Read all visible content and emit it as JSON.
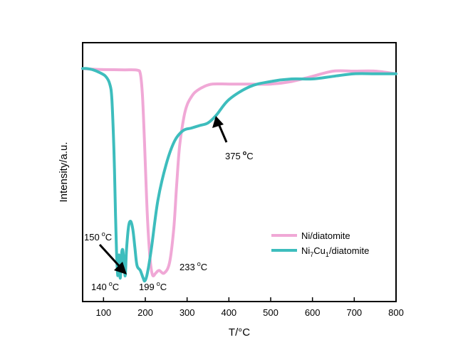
{
  "chart_data": {
    "type": "line",
    "title": "",
    "xlabel": "T/°C",
    "ylabel": "Intensity/a.u.",
    "xlim": [
      50,
      800
    ],
    "ylim": [
      0,
      100
    ],
    "x_ticks": [
      100,
      200,
      300,
      400,
      500,
      600,
      700,
      800
    ],
    "x_tick_labels": [
      "100",
      "200",
      "300",
      "400",
      "500",
      "600",
      "700",
      "800"
    ],
    "y_ticks_shown": false,
    "legend_position": "middle-right",
    "series": [
      {
        "name": "Ni/diatomite",
        "legend_label": "Ni/diatomite",
        "color": "#f0a8d6",
        "x": [
          50,
          70,
          100,
          150,
          180,
          188,
          193,
          198,
          203,
          208,
          213,
          218,
          225,
          233,
          245,
          258,
          268,
          275,
          282,
          292,
          300,
          310,
          320,
          340,
          360,
          400,
          450,
          500,
          550,
          600,
          650,
          700,
          750,
          800
        ],
        "y": [
          90,
          89.8,
          89.6,
          89.5,
          89.4,
          88,
          80,
          62,
          40,
          24,
          14,
          10,
          11,
          12,
          11,
          15,
          28,
          45,
          60,
          71,
          76,
          79,
          81,
          83,
          84,
          84,
          84,
          84,
          85,
          87,
          89,
          89,
          89,
          88
        ]
      },
      {
        "name": "Ni7Cu1/diatomite",
        "legend_label": {
          "base": "Ni",
          "sub1": "7",
          "mid": "Cu",
          "sub2": "1",
          "rest": "/diatomite"
        },
        "color": "#3dbdbd",
        "x": [
          50,
          60,
          75,
          90,
          105,
          115,
          120,
          125,
          128,
          131,
          134,
          137,
          140,
          143,
          146,
          149,
          152,
          155,
          160,
          165,
          170,
          175,
          180,
          188,
          195,
          199,
          205,
          215,
          230,
          250,
          270,
          290,
          310,
          330,
          350,
          370,
          400,
          450,
          500,
          550,
          600,
          650,
          700,
          750,
          800
        ],
        "y": [
          90,
          90,
          89.5,
          88.5,
          87,
          84,
          78,
          58,
          38,
          20,
          10,
          18,
          9,
          18,
          20,
          15,
          10,
          20,
          29,
          31,
          28,
          21,
          14,
          12,
          9,
          8,
          11,
          21,
          39,
          53,
          62,
          66,
          67,
          68,
          69,
          72,
          78,
          83,
          85,
          86,
          86,
          87,
          88,
          88,
          88
        ]
      }
    ],
    "annotations": [
      {
        "value": "375",
        "unit_sup": "o",
        "unit": "C",
        "x": 375,
        "y": 69
      },
      {
        "value": "150",
        "unit_sup": "o",
        "unit": "C",
        "x": 150,
        "y": 12
      },
      {
        "value": "140",
        "unit_sup": "o",
        "unit": "C",
        "x": 140,
        "y": 9
      },
      {
        "value": "199",
        "unit_sup": "o",
        "unit": "C",
        "x": 199,
        "y": 8
      },
      {
        "value": "233",
        "unit_sup": "o",
        "unit": "C",
        "x": 233,
        "y": 12
      }
    ]
  }
}
